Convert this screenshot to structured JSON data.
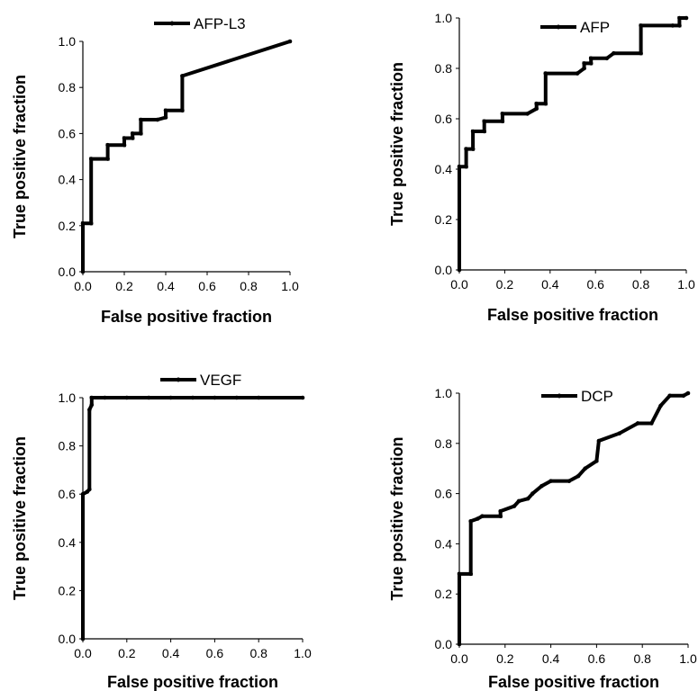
{
  "chart_data": [
    {
      "type": "line",
      "xlabel": "False positive fraction",
      "ylabel": "True positive fraction",
      "xlim": [
        0,
        1
      ],
      "ylim": [
        0,
        1
      ],
      "grid": false,
      "legend_position": "top-center",
      "xticks": [
        "0.0",
        "0.2",
        "0.4",
        "0.6",
        "0.8",
        "1.0"
      ],
      "yticks": [
        "0.0",
        "0.2",
        "0.4",
        "0.6",
        "0.8",
        "1.0"
      ],
      "series": [
        {
          "name": "AFP-L3",
          "color": "#000000",
          "points": [
            [
              0,
              0
            ],
            [
              0,
              0.21
            ],
            [
              0.04,
              0.21
            ],
            [
              0.04,
              0.49
            ],
            [
              0.12,
              0.49
            ],
            [
              0.12,
              0.55
            ],
            [
              0.2,
              0.55
            ],
            [
              0.2,
              0.58
            ],
            [
              0.24,
              0.58
            ],
            [
              0.24,
              0.6
            ],
            [
              0.28,
              0.6
            ],
            [
              0.28,
              0.66
            ],
            [
              0.36,
              0.66
            ],
            [
              0.4,
              0.67
            ],
            [
              0.4,
              0.7
            ],
            [
              0.48,
              0.7
            ],
            [
              0.48,
              0.85
            ],
            [
              1,
              1
            ]
          ]
        }
      ]
    },
    {
      "type": "line",
      "xlabel": "False positive fraction",
      "ylabel": "True positive fraction",
      "xlim": [
        0,
        1
      ],
      "ylim": [
        0,
        1
      ],
      "grid": false,
      "legend_position": "top-center",
      "xticks": [
        "0.0",
        "0.2",
        "0.4",
        "0.6",
        "0.8",
        "1.0"
      ],
      "yticks": [
        "0.0",
        "0.2",
        "0.4",
        "0.6",
        "0.8",
        "1.0"
      ],
      "series": [
        {
          "name": "AFP",
          "color": "#000000",
          "points": [
            [
              0,
              0
            ],
            [
              0,
              0.41
            ],
            [
              0.03,
              0.41
            ],
            [
              0.03,
              0.48
            ],
            [
              0.06,
              0.48
            ],
            [
              0.06,
              0.55
            ],
            [
              0.11,
              0.55
            ],
            [
              0.11,
              0.59
            ],
            [
              0.19,
              0.59
            ],
            [
              0.19,
              0.62
            ],
            [
              0.3,
              0.62
            ],
            [
              0.34,
              0.64
            ],
            [
              0.34,
              0.66
            ],
            [
              0.38,
              0.66
            ],
            [
              0.38,
              0.78
            ],
            [
              0.52,
              0.78
            ],
            [
              0.55,
              0.8
            ],
            [
              0.55,
              0.82
            ],
            [
              0.58,
              0.82
            ],
            [
              0.58,
              0.84
            ],
            [
              0.65,
              0.84
            ],
            [
              0.68,
              0.86
            ],
            [
              0.8,
              0.86
            ],
            [
              0.8,
              0.97
            ],
            [
              0.94,
              0.97
            ],
            [
              0.97,
              0.97
            ],
            [
              0.97,
              1.0
            ],
            [
              1.0,
              1.0
            ]
          ]
        }
      ]
    },
    {
      "type": "line",
      "xlabel": "False positive fraction",
      "ylabel": "True positive fraction",
      "xlim": [
        0,
        1
      ],
      "ylim": [
        0,
        1
      ],
      "grid": false,
      "legend_position": "top-center",
      "xticks": [
        "0.0",
        "0.2",
        "0.4",
        "0.6",
        "0.8",
        "1.0"
      ],
      "yticks": [
        "0.0",
        "0.2",
        "0.4",
        "0.6",
        "0.8",
        "1.0"
      ],
      "series": [
        {
          "name": "VEGF",
          "color": "#000000",
          "points": [
            [
              0,
              0
            ],
            [
              0,
              0.6
            ],
            [
              0.02,
              0.61
            ],
            [
              0.03,
              0.62
            ],
            [
              0.03,
              0.95
            ],
            [
              0.04,
              0.97
            ],
            [
              0.04,
              1.0
            ],
            [
              0.1,
              1.0
            ],
            [
              0.2,
              1.0
            ],
            [
              0.3,
              1.0
            ],
            [
              0.4,
              1.0
            ],
            [
              0.5,
              1.0
            ],
            [
              0.6,
              1.0
            ],
            [
              0.7,
              1.0
            ],
            [
              0.8,
              1.0
            ],
            [
              1.0,
              1.0
            ]
          ]
        }
      ]
    },
    {
      "type": "line",
      "xlabel": "False positive fraction",
      "ylabel": "True positive fraction",
      "xlim": [
        0,
        1
      ],
      "ylim": [
        0,
        1
      ],
      "grid": false,
      "legend_position": "top-center",
      "xticks": [
        "0.0",
        "0.2",
        "0.4",
        "0.6",
        "0.8",
        "1.0"
      ],
      "yticks": [
        "0.0",
        "0.2",
        "0.4",
        "0.6",
        "0.8",
        "1.0"
      ],
      "series": [
        {
          "name": "DCP",
          "color": "#000000",
          "points": [
            [
              0,
              0
            ],
            [
              0,
              0.28
            ],
            [
              0.05,
              0.28
            ],
            [
              0.05,
              0.49
            ],
            [
              0.08,
              0.5
            ],
            [
              0.1,
              0.51
            ],
            [
              0.18,
              0.51
            ],
            [
              0.18,
              0.53
            ],
            [
              0.24,
              0.55
            ],
            [
              0.26,
              0.57
            ],
            [
              0.3,
              0.58
            ],
            [
              0.32,
              0.6
            ],
            [
              0.36,
              0.63
            ],
            [
              0.4,
              0.65
            ],
            [
              0.48,
              0.65
            ],
            [
              0.52,
              0.67
            ],
            [
              0.55,
              0.7
            ],
            [
              0.6,
              0.73
            ],
            [
              0.61,
              0.81
            ],
            [
              0.7,
              0.84
            ],
            [
              0.78,
              0.88
            ],
            [
              0.84,
              0.88
            ],
            [
              0.88,
              0.95
            ],
            [
              0.92,
              0.99
            ],
            [
              0.98,
              0.99
            ],
            [
              1.0,
              1.0
            ]
          ]
        }
      ]
    }
  ]
}
